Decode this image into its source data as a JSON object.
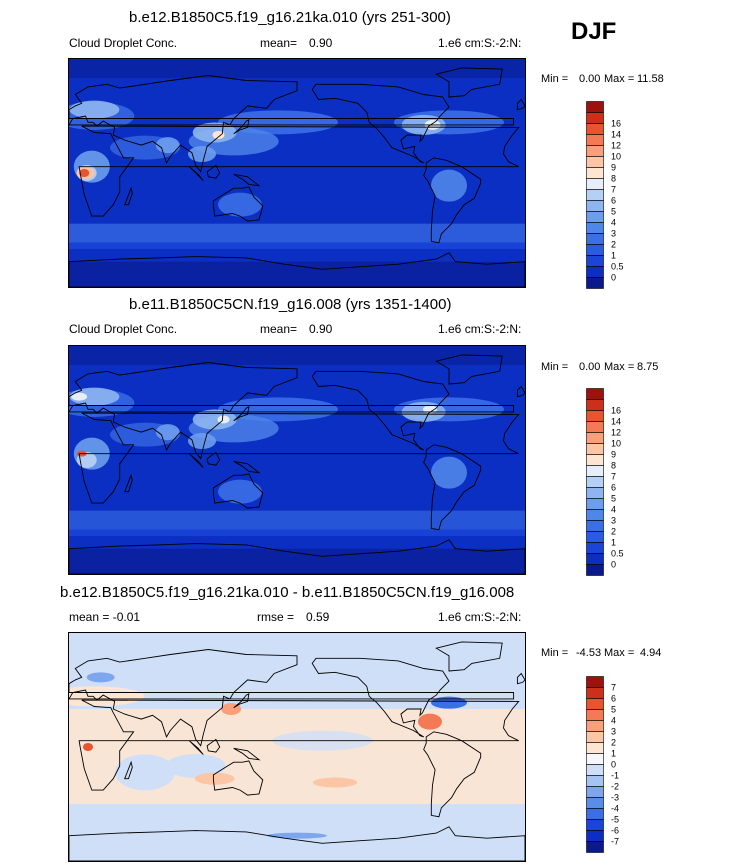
{
  "season": "DJF",
  "panels": [
    {
      "title": "b.e12.B1850C5.f19_g16.21ka.010 (yrs 251-300)",
      "left_label": "Cloud Droplet Conc.",
      "mean_label": "mean=",
      "mean_value": "0.90",
      "units": "1.e6 cm:S:-2:N:",
      "min_label": "Min =",
      "min_value": "0.00",
      "max_label": "Max =",
      "max_value": "11.58",
      "colorbar_levels": [
        "0",
        "0.5",
        "1",
        "2",
        "3",
        "4",
        "5",
        "6",
        "7",
        "8",
        "9",
        "10",
        "12",
        "14",
        "16"
      ],
      "colorbar_colors": [
        "#0a1a8c",
        "#0a2fc2",
        "#1a45d8",
        "#2a5be0",
        "#3a6fe6",
        "#4f86ea",
        "#6d9ded",
        "#8db6f1",
        "#b5d0f5",
        "#e6eefa",
        "#fde5d2",
        "#fcc5a5",
        "#fa9f7a",
        "#f47a55",
        "#e85430",
        "#cc2f1a",
        "#9e120d"
      ]
    },
    {
      "title": "b.e11.B1850C5CN.f19_g16.008 (yrs 1351-1400)",
      "left_label": "Cloud Droplet Conc.",
      "mean_label": "mean=",
      "mean_value": "0.90",
      "units": "1.e6 cm:S:-2:N:",
      "min_label": "Min =",
      "min_value": "0.00",
      "max_label": "Max =",
      "max_value": "8.75",
      "colorbar_levels": [
        "0",
        "0.5",
        "1",
        "2",
        "3",
        "4",
        "5",
        "6",
        "7",
        "8",
        "9",
        "10",
        "12",
        "14",
        "16"
      ],
      "colorbar_colors": [
        "#0a1a8c",
        "#0a2fc2",
        "#1a45d8",
        "#2a5be0",
        "#3a6fe6",
        "#4f86ea",
        "#6d9ded",
        "#8db6f1",
        "#b5d0f5",
        "#e6eefa",
        "#fde5d2",
        "#fcc5a5",
        "#fa9f7a",
        "#f47a55",
        "#e85430",
        "#cc2f1a",
        "#9e120d"
      ]
    },
    {
      "title": "b.e12.B1850C5.f19_g16.21ka.010 - b.e11.B1850C5CN.f19_g16.008",
      "left_label": "mean =  -0.01",
      "mean_label": "rmse =",
      "mean_value": "0.59",
      "units": "1.e6 cm:S:-2:N:",
      "min_label": "Min =",
      "min_value": "-4.53",
      "max_label": "Max =",
      "max_value": "4.94",
      "colorbar_levels": [
        "-7",
        "-6",
        "-5",
        "-4",
        "-3",
        "-2",
        "-1",
        "0",
        "1",
        "2",
        "3",
        "4",
        "5",
        "6",
        "7"
      ],
      "colorbar_colors": [
        "#0a1a8c",
        "#0a2fc2",
        "#1a45d8",
        "#3a6fe6",
        "#5a8ce9",
        "#7ea6ee",
        "#a5c3f3",
        "#cfdff8",
        "#f5f7fb",
        "#fde5d2",
        "#fcc5a5",
        "#fa9f7a",
        "#f47a55",
        "#e85430",
        "#cc2f1a",
        "#9e120d"
      ]
    }
  ],
  "chart_data": [
    {
      "type": "heatmap",
      "title": "b.e12.B1850C5.f19_g16.21ka.010 (yrs 251-300)",
      "variable": "Cloud Droplet Conc.",
      "units": "1.e6 cm:S:-2:N:",
      "season": "DJF",
      "mean": 0.9,
      "min": 0.0,
      "max": 11.58,
      "levels": [
        0,
        0.5,
        1,
        2,
        3,
        4,
        5,
        6,
        7,
        8,
        9,
        10,
        12,
        14,
        16
      ]
    },
    {
      "type": "heatmap",
      "title": "b.e11.B1850C5CN.f19_g16.008 (yrs 1351-1400)",
      "variable": "Cloud Droplet Conc.",
      "units": "1.e6 cm:S:-2:N:",
      "season": "DJF",
      "mean": 0.9,
      "min": 0.0,
      "max": 8.75,
      "levels": [
        0,
        0.5,
        1,
        2,
        3,
        4,
        5,
        6,
        7,
        8,
        9,
        10,
        12,
        14,
        16
      ]
    },
    {
      "type": "heatmap",
      "title": "b.e12.B1850C5.f19_g16.21ka.010 - b.e11.B1850C5CN.f19_g16.008",
      "units": "1.e6 cm:S:-2:N:",
      "season": "DJF",
      "mean": -0.01,
      "rmse": 0.59,
      "min": -4.53,
      "max": 4.94,
      "levels": [
        -7,
        -6,
        -5,
        -4,
        -3,
        -2,
        -1,
        0,
        1,
        2,
        3,
        4,
        5,
        6,
        7
      ]
    }
  ]
}
